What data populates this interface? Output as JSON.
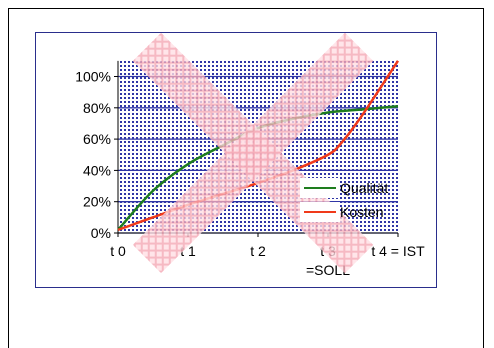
{
  "chart_data": {
    "type": "line",
    "categories": [
      "t 0",
      "t 1",
      "t 2",
      "t 3",
      "t 4 = IST"
    ],
    "x_sublabels": [
      "",
      "",
      "",
      "=SOLL",
      ""
    ],
    "y_ticks": [
      "0%",
      "20%",
      "40%",
      "60%",
      "80%",
      "100%"
    ],
    "ylim": [
      0,
      100
    ],
    "y_extend_top": 110,
    "grid": "horizontal",
    "plot_background": "dotted-blue",
    "legend_position": "right",
    "series": [
      {
        "name": "Qualität",
        "color": "#1e7d1e",
        "points": [
          [
            0,
            2
          ],
          [
            0.5,
            27
          ],
          [
            1,
            44
          ],
          [
            1.5,
            56
          ],
          [
            2,
            67
          ],
          [
            2.5,
            73
          ],
          [
            3,
            77
          ],
          [
            3.5,
            79
          ],
          [
            4,
            81
          ]
        ]
      },
      {
        "name": "Kosten",
        "color": "#f03a1a",
        "points": [
          [
            0,
            2
          ],
          [
            0.5,
            10
          ],
          [
            1,
            18
          ],
          [
            1.5,
            25
          ],
          [
            2,
            32
          ],
          [
            2.5,
            40
          ],
          [
            3,
            50
          ],
          [
            3.2,
            58
          ],
          [
            3.5,
            76
          ],
          [
            4,
            110
          ]
        ]
      }
    ],
    "overlay": "large pink cross (X) over the plot"
  }
}
